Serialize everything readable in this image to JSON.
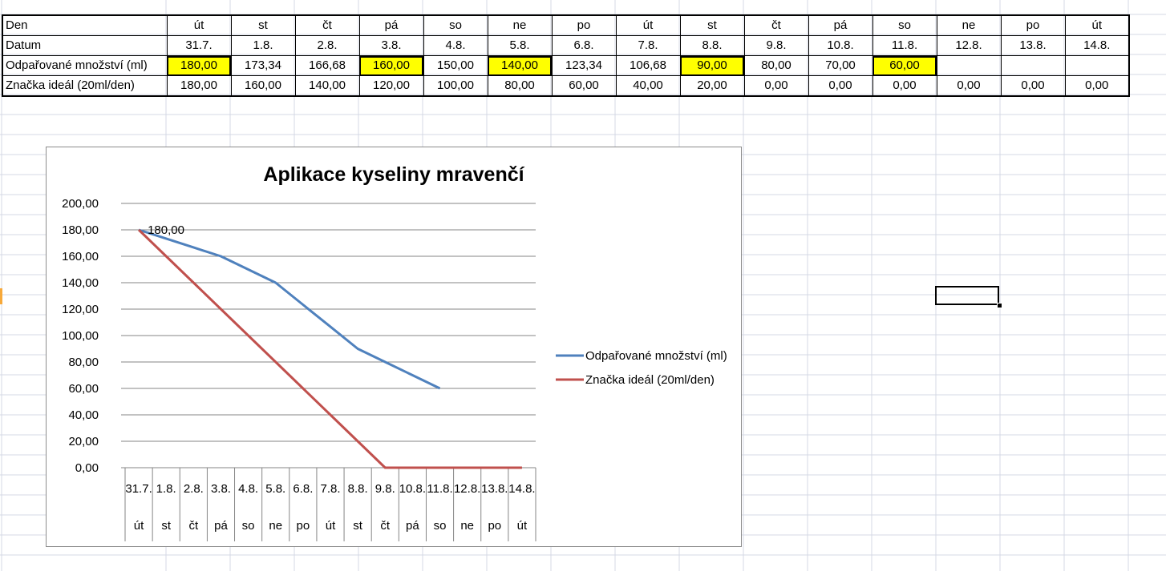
{
  "sheet": {
    "rows": [
      {
        "label": "Den",
        "cells": [
          "út",
          "st",
          "čt",
          "pá",
          "so",
          "ne",
          "po",
          "út",
          "st",
          "čt",
          "pá",
          "so",
          "ne",
          "po",
          "út"
        ]
      },
      {
        "label": "Datum",
        "cells": [
          "31.7.",
          "1.8.",
          "2.8.",
          "3.8.",
          "4.8.",
          "5.8.",
          "6.8.",
          "7.8.",
          "8.8.",
          "9.8.",
          "10.8.",
          "11.8.",
          "12.8.",
          "13.8.",
          "14.8."
        ]
      },
      {
        "label": "Odpařované množství (ml)",
        "cells": [
          "180,00",
          "173,34",
          "166,68",
          "160,00",
          "150,00",
          "140,00",
          "123,34",
          "106,68",
          "90,00",
          "80,00",
          "70,00",
          "60,00",
          "",
          "",
          ""
        ],
        "highlighted": [
          0,
          3,
          5,
          8,
          11
        ]
      },
      {
        "label": "Značka ideál (20ml/den)",
        "cells": [
          "180,00",
          "160,00",
          "140,00",
          "120,00",
          "100,00",
          "80,00",
          "60,00",
          "40,00",
          "20,00",
          "0,00",
          "0,00",
          "0,00",
          "0,00",
          "0,00",
          "0,00"
        ]
      }
    ],
    "highlight_color": "#ffff00"
  },
  "chart_data": {
    "type": "line",
    "title": "Aplikace kyseliny mravenčí",
    "categories": [
      "31.7.",
      "1.8.",
      "2.8.",
      "3.8.",
      "4.8.",
      "5.8.",
      "6.8.",
      "7.8.",
      "8.8.",
      "9.8.",
      "10.8.",
      "11.8.",
      "12.8.",
      "13.8.",
      "14.8."
    ],
    "categories_secondary": [
      "út",
      "st",
      "čt",
      "pá",
      "so",
      "ne",
      "po",
      "út",
      "st",
      "čt",
      "pá",
      "so",
      "ne",
      "po",
      "út"
    ],
    "series": [
      {
        "name": "Odpařované množství (ml)",
        "color": "#4f81bd",
        "values": [
          180,
          173.34,
          166.68,
          160,
          150,
          140,
          123.34,
          106.68,
          90,
          80,
          70,
          60,
          null,
          null,
          null
        ]
      },
      {
        "name": "Značka ideál (20ml/den)",
        "color": "#c0504d",
        "values": [
          180,
          160,
          140,
          120,
          100,
          80,
          60,
          40,
          20,
          0,
          0,
          0,
          0,
          0,
          0
        ]
      }
    ],
    "ylim": [
      0,
      200
    ],
    "yticks": [
      "0,00",
      "20,00",
      "40,00",
      "60,00",
      "80,00",
      "100,00",
      "120,00",
      "140,00",
      "160,00",
      "180,00",
      "200,00"
    ],
    "data_label": "180,00",
    "grid": true,
    "legend_position": "right"
  }
}
